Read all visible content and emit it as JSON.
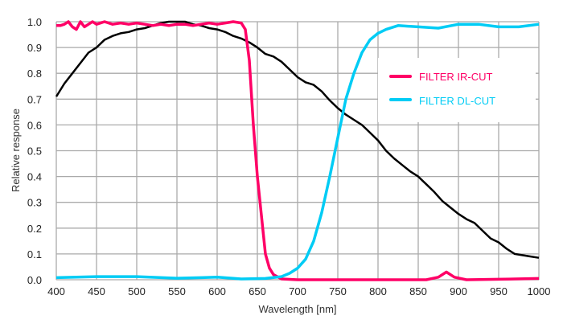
{
  "chart_data": {
    "type": "line",
    "title": "",
    "xlabel": "Wavelength [nm]",
    "ylabel": "Relative response",
    "xlim": [
      400,
      1000
    ],
    "ylim": [
      0,
      1.0
    ],
    "xticks": [
      "400",
      "450",
      "500",
      "550",
      "600",
      "650",
      "700",
      "750",
      "800",
      "850",
      "900",
      "950",
      "1000"
    ],
    "yticks": [
      "0.0",
      "0.1",
      "0.2",
      "0.3",
      "0.4",
      "0.5",
      "0.6",
      "0.7",
      "0.8",
      "0.9",
      "1.0"
    ],
    "grid": true,
    "legend_position": "upper-right",
    "series": [
      {
        "name": "",
        "color": "#000000",
        "in_legend": false,
        "x": [
          400,
          410,
          420,
          430,
          440,
          450,
          460,
          470,
          480,
          490,
          500,
          510,
          520,
          530,
          540,
          550,
          560,
          570,
          580,
          590,
          600,
          610,
          620,
          630,
          640,
          650,
          660,
          670,
          680,
          690,
          700,
          710,
          720,
          730,
          740,
          750,
          760,
          770,
          780,
          790,
          800,
          810,
          820,
          830,
          840,
          850,
          860,
          870,
          880,
          890,
          900,
          910,
          920,
          930,
          940,
          950,
          960,
          970,
          980,
          990,
          1000
        ],
        "y": [
          0.71,
          0.76,
          0.8,
          0.84,
          0.88,
          0.9,
          0.93,
          0.945,
          0.955,
          0.96,
          0.97,
          0.975,
          0.985,
          0.995,
          1.0,
          1.0,
          1.0,
          0.99,
          0.985,
          0.975,
          0.97,
          0.96,
          0.945,
          0.935,
          0.92,
          0.9,
          0.875,
          0.865,
          0.845,
          0.815,
          0.785,
          0.765,
          0.755,
          0.73,
          0.695,
          0.665,
          0.64,
          0.62,
          0.6,
          0.57,
          0.54,
          0.5,
          0.47,
          0.445,
          0.42,
          0.4,
          0.37,
          0.34,
          0.305,
          0.28,
          0.255,
          0.235,
          0.22,
          0.19,
          0.16,
          0.145,
          0.12,
          0.1,
          0.095,
          0.09,
          0.085
        ]
      },
      {
        "name": "FILTER IR-CUT",
        "color": "#ff0066",
        "in_legend": true,
        "x": [
          400,
          405,
          410,
          415,
          420,
          425,
          430,
          435,
          440,
          445,
          450,
          460,
          470,
          480,
          490,
          500,
          510,
          520,
          530,
          540,
          550,
          560,
          570,
          580,
          590,
          600,
          610,
          620,
          630,
          635,
          640,
          645,
          650,
          655,
          660,
          665,
          670,
          680,
          700,
          750,
          800,
          860,
          875,
          885,
          895,
          910,
          950,
          1000
        ],
        "y": [
          0.985,
          0.985,
          0.99,
          1.0,
          0.98,
          0.97,
          1.0,
          0.98,
          0.99,
          1.0,
          0.99,
          1.0,
          0.99,
          0.995,
          0.99,
          0.995,
          0.99,
          0.985,
          0.99,
          0.985,
          0.99,
          0.99,
          0.985,
          0.99,
          0.995,
          0.99,
          0.995,
          1.0,
          0.995,
          0.97,
          0.85,
          0.6,
          0.4,
          0.25,
          0.1,
          0.045,
          0.02,
          0.003,
          0.0,
          0.0,
          0.0,
          0.0,
          0.01,
          0.03,
          0.01,
          0.0,
          0.002,
          0.005
        ]
      },
      {
        "name": "FILTER DL-CUT",
        "color": "#00ccf5",
        "in_legend": true,
        "x": [
          400,
          450,
          500,
          550,
          600,
          630,
          660,
          680,
          690,
          700,
          710,
          720,
          730,
          740,
          750,
          760,
          770,
          780,
          790,
          800,
          810,
          825,
          850,
          875,
          900,
          925,
          950,
          975,
          1000
        ],
        "y": [
          0.008,
          0.012,
          0.012,
          0.006,
          0.01,
          0.003,
          0.005,
          0.012,
          0.025,
          0.045,
          0.08,
          0.15,
          0.26,
          0.4,
          0.55,
          0.7,
          0.8,
          0.88,
          0.93,
          0.955,
          0.97,
          0.985,
          0.98,
          0.975,
          0.99,
          0.99,
          0.98,
          0.98,
          0.99
        ]
      }
    ]
  }
}
